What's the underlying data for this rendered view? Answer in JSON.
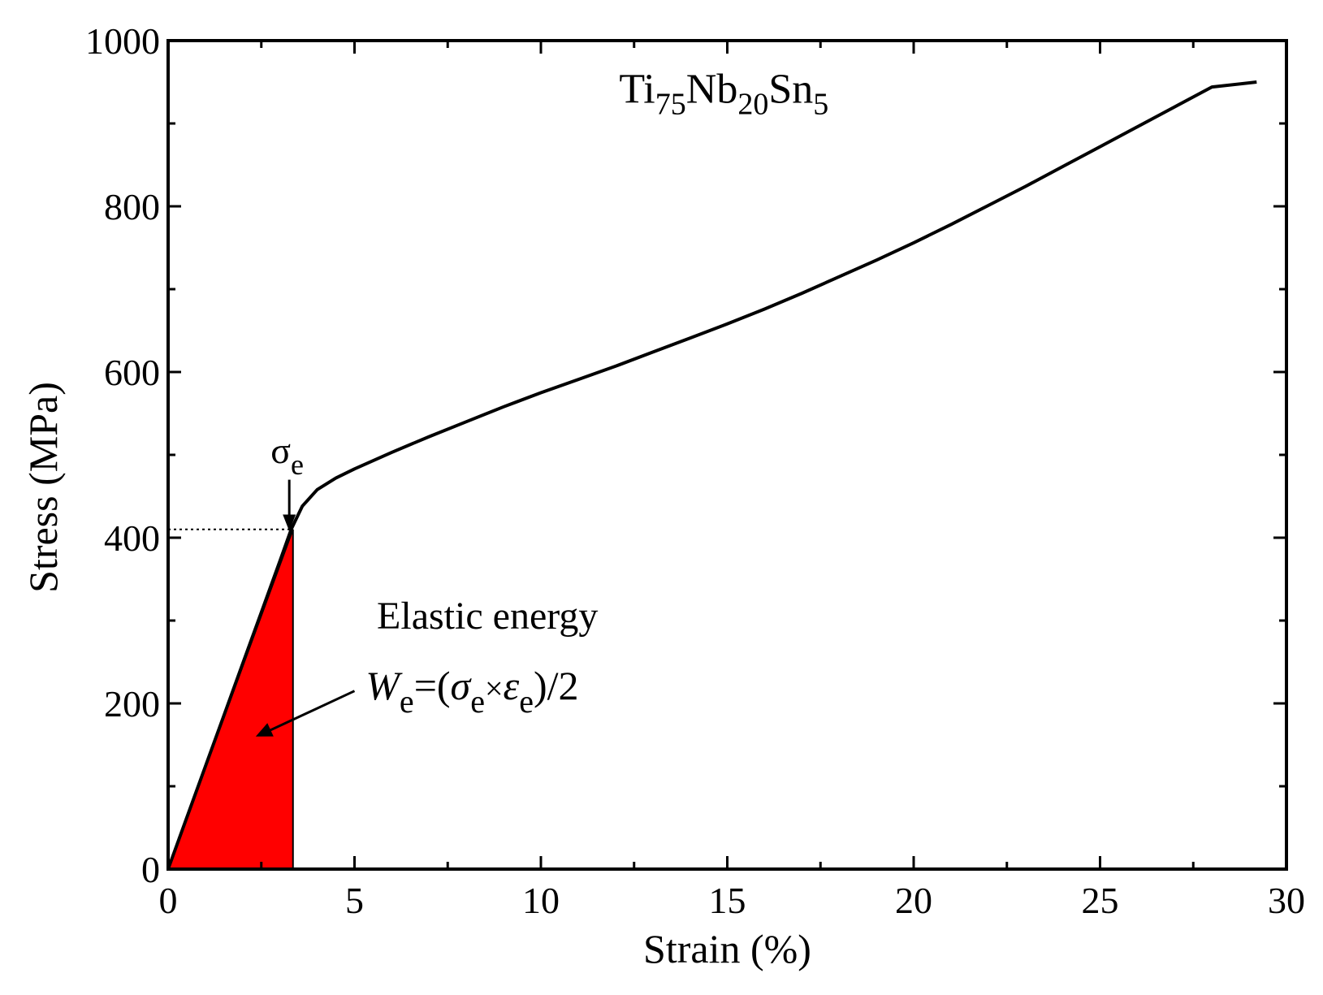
{
  "chart_data": {
    "type": "line",
    "title": "",
    "xlabel": "Strain (%)",
    "ylabel": "Stress (MPa)",
    "xlim": [
      0,
      30
    ],
    "ylim": [
      0,
      1000
    ],
    "x_ticks": [
      0,
      5,
      10,
      15,
      20,
      25,
      30
    ],
    "x_tick_labels": [
      "0",
      "5",
      "10",
      "15",
      "20",
      "25",
      "30"
    ],
    "y_ticks": [
      0,
      200,
      400,
      600,
      800,
      1000
    ],
    "y_tick_labels": [
      "0",
      "200",
      "400",
      "600",
      "800",
      "1000"
    ],
    "grid": false,
    "series": [
      {
        "color": "#000000",
        "x": [
          0,
          0.5,
          1,
          1.5,
          2,
          2.5,
          3,
          3.3,
          3.6,
          4,
          4.5,
          5,
          6,
          7,
          8,
          9,
          10,
          11,
          12,
          13,
          14,
          15,
          16,
          17,
          18,
          19,
          20,
          21,
          22,
          23,
          24,
          25,
          26,
          27,
          28,
          29.2
        ],
        "y": [
          0,
          62,
          124,
          186,
          248,
          310,
          372,
          410,
          438,
          458,
          472,
          483,
          503,
          522,
          540,
          558,
          575,
          591,
          607,
          624,
          641,
          658,
          676,
          695,
          715,
          735,
          756,
          778,
          801,
          824,
          848,
          872,
          896,
          920,
          944,
          950
        ]
      }
    ],
    "shaded_region": {
      "label": "Elastic energy",
      "x": [
        0,
        3.35
      ],
      "y_at_edge": 410,
      "color": "#ff0000"
    },
    "reference_line": {
      "y": 410,
      "x_from": 0,
      "x_to": 3.35,
      "style": "dotted"
    },
    "annotations": {
      "alloy": {
        "base1": "Ti",
        "sub1": "75",
        "base2": "Nb",
        "sub2": "20",
        "base3": "Sn",
        "sub3": "5"
      },
      "sigma_e": {
        "symbol": "σ",
        "sub": "e"
      },
      "elastic_energy": "Elastic energy",
      "formula": {
        "W": "W",
        "sub_W": "e",
        "eq": "=(",
        "sigma": "σ",
        "sub_sigma": "e",
        "times": "×",
        "eps": "ε",
        "sub_eps": "e",
        "tail": ")/2"
      }
    }
  }
}
